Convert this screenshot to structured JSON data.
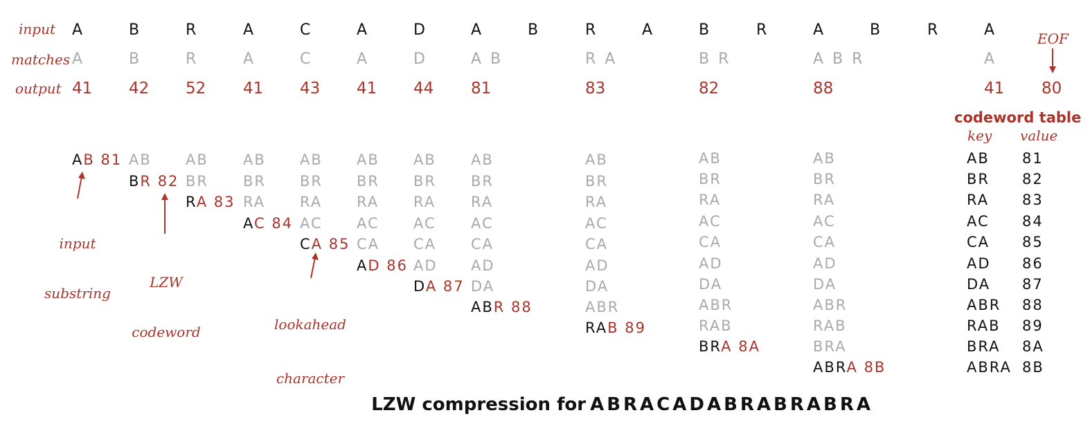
{
  "labels": {
    "input": "input",
    "matches": "matches",
    "output": "output",
    "eof": "EOF"
  },
  "input_chars": [
    "A",
    "B",
    "R",
    "A",
    "C",
    "A",
    "D",
    "A",
    "B",
    "R",
    "A",
    "B",
    "R",
    "A",
    "B",
    "R",
    "A"
  ],
  "matches": [
    "A",
    "B",
    "R",
    "A",
    "C",
    "A",
    "D",
    "A B",
    "R A",
    "B R",
    "A B R",
    "A"
  ],
  "outputs": [
    "41",
    "42",
    "52",
    "41",
    "43",
    "41",
    "44",
    "81",
    "83",
    "82",
    "88",
    "41",
    "80"
  ],
  "annotations": {
    "input_substring": [
      "input",
      "substring"
    ],
    "lzw_codeword": [
      "LZW",
      "codeword"
    ],
    "lookahead_character": [
      "lookahead",
      "character"
    ]
  },
  "codeword_table": {
    "title": "codeword table",
    "key_header": "key",
    "value_header": "value",
    "rows": [
      {
        "key": "AB",
        "value": "81"
      },
      {
        "key": "BR",
        "value": "82"
      },
      {
        "key": "RA",
        "value": "83"
      },
      {
        "key": "AC",
        "value": "84"
      },
      {
        "key": "CA",
        "value": "85"
      },
      {
        "key": "AD",
        "value": "86"
      },
      {
        "key": "DA",
        "value": "87"
      },
      {
        "key": "ABR",
        "value": "88"
      },
      {
        "key": "RAB",
        "value": "89"
      },
      {
        "key": "BRA",
        "value": "8A"
      },
      {
        "key": "ABRA",
        "value": "8B"
      }
    ]
  },
  "step_entries": [
    {
      "old": "AB",
      "last": "",
      "code": ""
    },
    {
      "old": "BR",
      "last": "",
      "code": ""
    },
    {
      "old": "RA",
      "last": "",
      "code": ""
    },
    {
      "old": "AC",
      "last": "",
      "code": ""
    },
    {
      "old": "CA",
      "last": "",
      "code": ""
    },
    {
      "old": "AD",
      "last": "",
      "code": ""
    },
    {
      "old": "DA",
      "last": "",
      "code": ""
    },
    {
      "old": "ABR",
      "last": "",
      "code": ""
    },
    {
      "old": "RAB",
      "last": "",
      "code": ""
    },
    {
      "old": "BRA",
      "last": "",
      "code": ""
    },
    {
      "old": "ABRA",
      "last": "",
      "code": ""
    }
  ],
  "new_entries": [
    {
      "prefix": "A",
      "ext": "B",
      "code": "81"
    },
    {
      "prefix": "B",
      "ext": "R",
      "code": "82"
    },
    {
      "prefix": "R",
      "ext": "A",
      "code": "83"
    },
    {
      "prefix": "A",
      "ext": "C",
      "code": "84"
    },
    {
      "prefix": "C",
      "ext": "A",
      "code": "85"
    },
    {
      "prefix": "A",
      "ext": "D",
      "code": "86"
    },
    {
      "prefix": "D",
      "ext": "A",
      "code": "87"
    },
    {
      "prefix": "AB",
      "ext": "R",
      "code": "88"
    },
    {
      "prefix": "RA",
      "ext": "B",
      "code": "89"
    },
    {
      "prefix": "BR",
      "ext": "A",
      "code": "8A"
    },
    {
      "prefix": "ABR",
      "ext": "A",
      "code": "8B"
    }
  ],
  "caption": {
    "text": "LZW compression for",
    "sequence": "ABRACADABRABRABRA"
  },
  "colors": {
    "accent": "#a8342b",
    "ink": "#111111",
    "faded": "#a9a9a9"
  }
}
